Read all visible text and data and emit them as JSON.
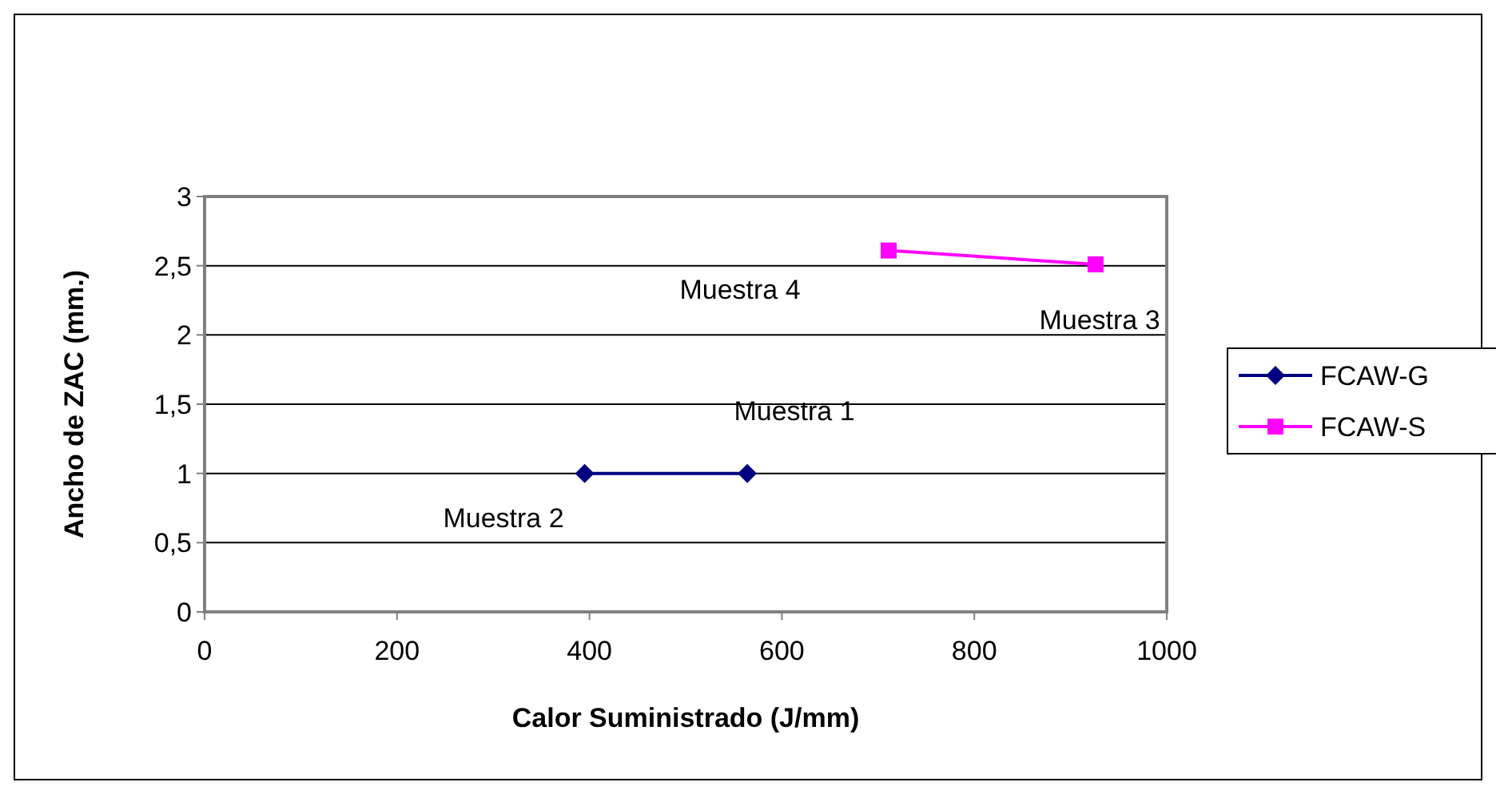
{
  "chart_data": {
    "type": "line",
    "xlabel": "Calor Suministrado (J/mm)",
    "ylabel": "Ancho de ZAC (mm.)",
    "xlim": [
      0,
      1000
    ],
    "xticks": [
      0,
      200,
      400,
      600,
      800,
      1000
    ],
    "ylim": [
      0,
      3
    ],
    "yticks": [
      0,
      {
        "value": 0.5,
        "label": "0,5"
      },
      1,
      {
        "value": 1.5,
        "label": "1,5"
      },
      2,
      {
        "value": 2.5,
        "label": "2,5"
      },
      3
    ],
    "grid": "y",
    "legend": "right",
    "series": [
      {
        "name": "FCAW-G",
        "color": "#000080",
        "marker": "diamond",
        "x": [
          395,
          564
        ],
        "values": [
          1,
          1
        ]
      },
      {
        "name": "FCAW-S",
        "color": "#ff00ff",
        "marker": "square",
        "x": [
          711,
          926
        ],
        "values": [
          2.61,
          2.51
        ]
      }
    ],
    "annotations": [
      "Muestra 2",
      "Muestra 1",
      "Muestra 4",
      "Muestra 3"
    ]
  }
}
